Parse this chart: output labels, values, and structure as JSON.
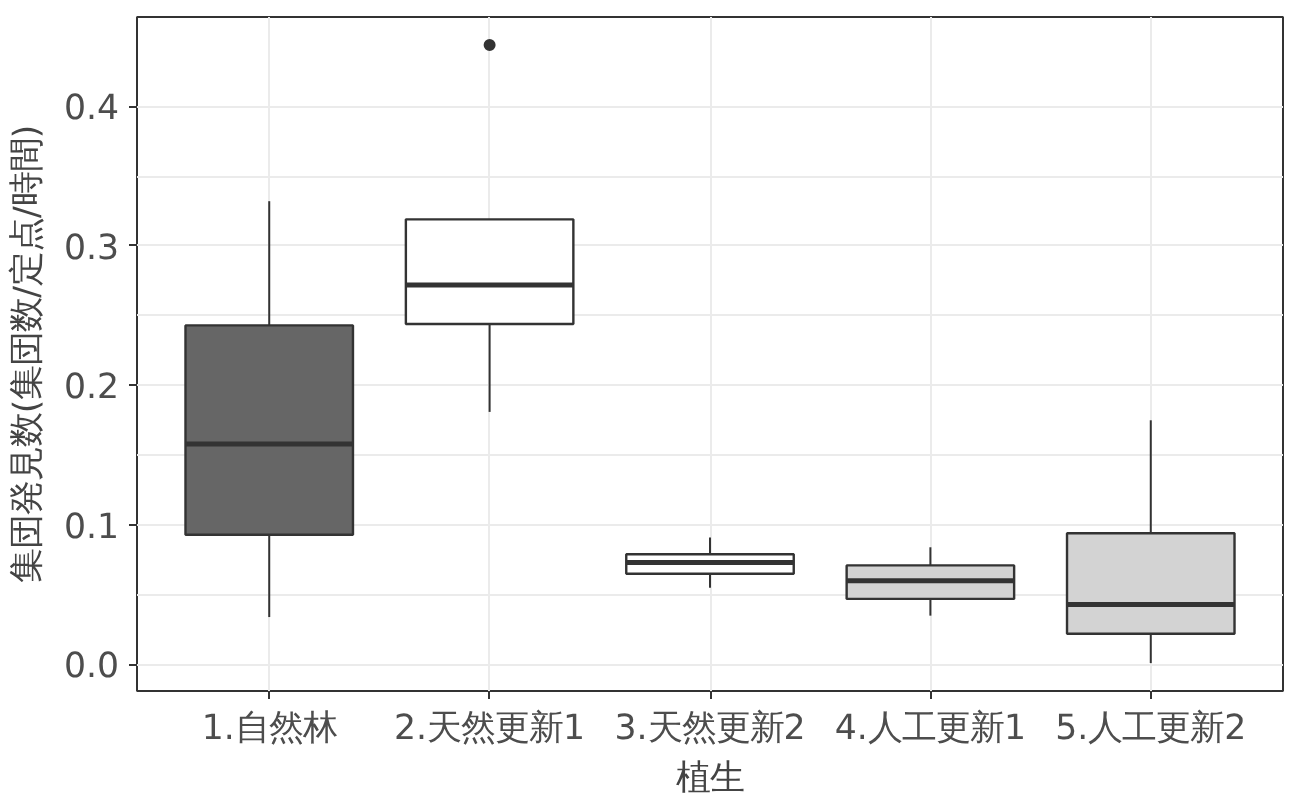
{
  "chart_data": {
    "type": "box",
    "xlabel": "植生",
    "ylabel": "集団発見数(集団数/定点/時間)",
    "categories": [
      "1.自然林",
      "2.天然更新1",
      "3.天然更新2",
      "4.人工更新1",
      "5.人工更新2"
    ],
    "colors": [
      "#666666",
      "#ffffff",
      "#ffffff",
      "#d3d3d3",
      "#d3d3d3"
    ],
    "boxes": [
      {
        "low": 0.034,
        "q1": 0.093,
        "median": 0.158,
        "q3": 0.243,
        "high": 0.332
      },
      {
        "low": 0.181,
        "q1": 0.244,
        "median": 0.272,
        "q3": 0.319,
        "high": 0.319,
        "outliers": [
          0.444
        ]
      },
      {
        "low": 0.055,
        "q1": 0.065,
        "median": 0.073,
        "q3": 0.079,
        "high": 0.091
      },
      {
        "low": 0.035,
        "q1": 0.047,
        "median": 0.06,
        "q3": 0.071,
        "high": 0.084
      },
      {
        "low": 0.001,
        "q1": 0.022,
        "median": 0.043,
        "q3": 0.094,
        "high": 0.175
      }
    ],
    "ylim": [
      -0.019,
      0.464
    ],
    "yticks": [
      {
        "value": 0,
        "label": "0.0"
      },
      {
        "value": 0.1,
        "label": "0.1"
      },
      {
        "value": 0.2,
        "label": "0.2"
      },
      {
        "value": 0.3,
        "label": "0.3"
      },
      {
        "value": 0.4,
        "label": "0.4"
      }
    ],
    "grid": true
  }
}
